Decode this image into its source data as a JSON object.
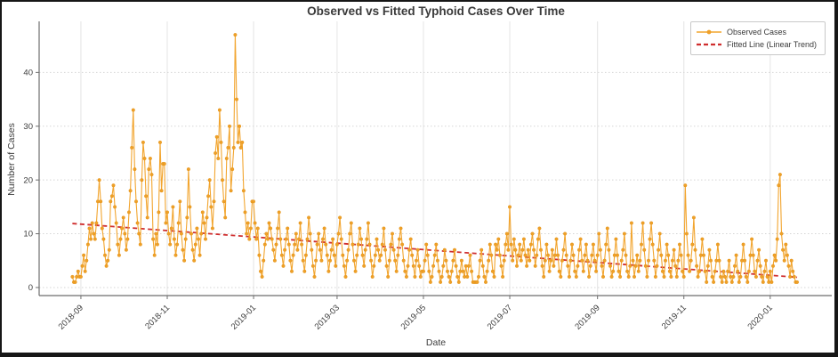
{
  "chart_data": {
    "type": "line",
    "title": "Observed vs Fitted Typhoid Cases Over Time",
    "xlabel": "Date",
    "ylabel": "Number of Cases",
    "x_ticks": [
      "2018-09",
      "2018-11",
      "2019-01",
      "2019-03",
      "2019-05",
      "2019-07",
      "2019-09",
      "2019-11",
      "2020-01"
    ],
    "y_ticks": [
      0,
      10,
      20,
      30,
      40
    ],
    "ylim": [
      -1.5,
      49.5
    ],
    "xlim_days_from_start": [
      -23.5,
      536.5
    ],
    "grid": true,
    "legend_position": "upper right",
    "colors": {
      "observed_line": "#f2a52f",
      "observed_marker": "#efa028",
      "observed_marker_edge": "#e08f12",
      "fitted_line": "#cf2e2e",
      "grid_vertical": "#e4e4e4",
      "grid_horizontal": "#d5d5d5",
      "spine": "#6e6e6e",
      "tick_text": "#3d3d3d",
      "title_text": "#3a3a3a"
    },
    "series": [
      {
        "name": "Observed Cases",
        "style": "solid-line-with-circle-markers",
        "start_date": "2018-08-26",
        "end_date": "2020-01-20",
        "frequency": "daily",
        "values": [
          2,
          1,
          1,
          2,
          3,
          2,
          2,
          4,
          6,
          3,
          5,
          8,
          11,
          9,
          12,
          10,
          9,
          12,
          16,
          20,
          16,
          11,
          9,
          6,
          4,
          5,
          7,
          16,
          17,
          19,
          15,
          12,
          8,
          6,
          9,
          11,
          13,
          10,
          7,
          9,
          14,
          18,
          26,
          33,
          22,
          16,
          12,
          10,
          8,
          20,
          27,
          24,
          17,
          13,
          22,
          24,
          21,
          9,
          6,
          10,
          8,
          14,
          27,
          18,
          23,
          23,
          12,
          14,
          10,
          8,
          11,
          15,
          9,
          6,
          8,
          12,
          16,
          10,
          7,
          5,
          9,
          13,
          22,
          15,
          10,
          7,
          5,
          8,
          11,
          9,
          6,
          10,
          14,
          12,
          9,
          13,
          17,
          20,
          15,
          11,
          16,
          25,
          28,
          24,
          33,
          27,
          20,
          16,
          13,
          24,
          26,
          30,
          18,
          22,
          26,
          47,
          35,
          27,
          30,
          26,
          27,
          18,
          14,
          10,
          12,
          9,
          11,
          16,
          16,
          12,
          9,
          11,
          6,
          3,
          2,
          5,
          8,
          10,
          9,
          12,
          11,
          9,
          7,
          5,
          8,
          11,
          14,
          9,
          6,
          4,
          7,
          9,
          11,
          8,
          5,
          3,
          6,
          8,
          10,
          7,
          9,
          12,
          8,
          5,
          3,
          6,
          9,
          13,
          10,
          7,
          4,
          2,
          5,
          8,
          10,
          7,
          5,
          9,
          11,
          8,
          6,
          3,
          5,
          7,
          9,
          6,
          4,
          8,
          10,
          13,
          9,
          6,
          4,
          2,
          5,
          7,
          10,
          12,
          8,
          5,
          3,
          6,
          8,
          11,
          9,
          6,
          4,
          7,
          9,
          12,
          8,
          5,
          2,
          4,
          6,
          9,
          7,
          5,
          6,
          8,
          11,
          7,
          4,
          2,
          5,
          8,
          10,
          7,
          5,
          3,
          6,
          9,
          11,
          8,
          5,
          3,
          2,
          4,
          7,
          9,
          6,
          4,
          2,
          5,
          7,
          4,
          2,
          3,
          3,
          5,
          8,
          6,
          3,
          1,
          2,
          4,
          6,
          8,
          5,
          3,
          1,
          2,
          4,
          7,
          5,
          3,
          2,
          1,
          3,
          5,
          7,
          4,
          2,
          1,
          3,
          5,
          3,
          2,
          4,
          2,
          4,
          6,
          3,
          1,
          1,
          1,
          1,
          2,
          5,
          7,
          4,
          2,
          1,
          3,
          5,
          8,
          6,
          3,
          2,
          8,
          7,
          9,
          6,
          4,
          2,
          5,
          8,
          10,
          7,
          15,
          8,
          5,
          9,
          7,
          4,
          6,
          8,
          5,
          7,
          9,
          6,
          4,
          7,
          5,
          8,
          10,
          7,
          4,
          6,
          9,
          11,
          7,
          4,
          2,
          5,
          8,
          6,
          3,
          5,
          7,
          4,
          6,
          9,
          6,
          3,
          2,
          5,
          7,
          10,
          6,
          4,
          2,
          5,
          8,
          6,
          3,
          2,
          4,
          7,
          9,
          5,
          3,
          6,
          8,
          5,
          2,
          4,
          6,
          8,
          5,
          3,
          6,
          10,
          7,
          4,
          2,
          5,
          8,
          11,
          7,
          4,
          2,
          3,
          6,
          9,
          6,
          3,
          2,
          5,
          7,
          10,
          6,
          3,
          2,
          4,
          12,
          5,
          2,
          4,
          6,
          3,
          5,
          8,
          12,
          7,
          4,
          2,
          5,
          9,
          12,
          8,
          5,
          2,
          4,
          7,
          10,
          6,
          3,
          2,
          5,
          8,
          6,
          3,
          2,
          5,
          7,
          4,
          2,
          5,
          8,
          6,
          3,
          2,
          19,
          10,
          6,
          3,
          5,
          8,
          13,
          7,
          4,
          2,
          3,
          6,
          9,
          6,
          3,
          1,
          4,
          7,
          5,
          2,
          1,
          3,
          5,
          8,
          5,
          2,
          1,
          3,
          2,
          1,
          3,
          5,
          2,
          1,
          2,
          4,
          6,
          3,
          1,
          2,
          5,
          8,
          5,
          2,
          1,
          3,
          6,
          9,
          6,
          3,
          2,
          5,
          7,
          4,
          2,
          1,
          3,
          5,
          2,
          1,
          3,
          1,
          4,
          6,
          5,
          9,
          19,
          21,
          10,
          7,
          5,
          8,
          6,
          4,
          2,
          5,
          3,
          2,
          1,
          1
        ]
      },
      {
        "name": "Fitted Line (Linear Trend)",
        "style": "dashed-line",
        "start_value": 11.9,
        "end_value": 1.9
      }
    ]
  }
}
